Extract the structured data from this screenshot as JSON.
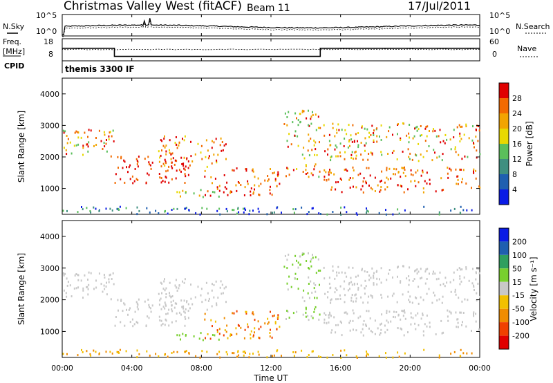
{
  "header": {
    "title": "Christmas Valley West (fitACF)",
    "beam": "Beam 11",
    "date": "17/Jul/2011"
  },
  "left_labels": {
    "nsky": "N.Sky",
    "freq_line1": "Freq.",
    "freq_line2": "[MHz]",
    "cpid": "CPID"
  },
  "right_labels": {
    "nsearch": "N.Search",
    "nave": "Nave"
  },
  "cpid_text": "themis 3300 IF",
  "colors": {
    "power": [
      "#0a1be6",
      "#1f5fb0",
      "#3f8f80",
      "#5bbf5b",
      "#e8d800",
      "#f2a400",
      "#f26a00",
      "#e00000"
    ],
    "velocity": [
      "#e00000",
      "#f04000",
      "#f08c00",
      "#f2c000",
      "#c8c8c8",
      "#78cf2e",
      "#2f9f5f",
      "#1f5fb0",
      "#0a1be6"
    ]
  },
  "chart_data": [
    {
      "type": "line",
      "name": "noise-panel",
      "ylabel_left": "N.Sky",
      "ylabel_right": "N.Search",
      "left_ticks": [
        "10^5",
        "10^0"
      ],
      "right_ticks": [
        "10^5",
        "10^0"
      ]
    },
    {
      "type": "line",
      "name": "freq-nave-panel",
      "ylabel_left": "Freq. [MHz]",
      "ylabel_right": "Nave",
      "left_ticks": [
        "18",
        "8"
      ],
      "right_ticks": [
        "60",
        "0"
      ],
      "freq_steps": [
        {
          "from": "00:00",
          "to": "03:00",
          "mhz": 14.5
        },
        {
          "from": "03:00",
          "to": "14:50",
          "mhz": 10.3
        },
        {
          "from": "14:50",
          "to": "24:00",
          "mhz": 14.5
        }
      ]
    },
    {
      "type": "heatmap",
      "name": "power",
      "ylabel": "Slant Range [km]",
      "yticks": [
        "4000",
        "3000",
        "2000",
        "1000"
      ],
      "ylim": [
        180,
        4500
      ],
      "colorbar_label": "Power [dB]",
      "colorbar_ticks": [
        "28",
        "24",
        "20",
        "16",
        "12",
        "8",
        "4"
      ]
    },
    {
      "type": "heatmap",
      "name": "velocity",
      "ylabel": "Slant Range [km]",
      "yticks": [
        "4000",
        "3000",
        "2000",
        "1000"
      ],
      "ylim": [
        180,
        4500
      ],
      "colorbar_label": "Velocity [m s⁻¹]",
      "colorbar_ticks": [
        "200",
        "100",
        "50",
        "15",
        "-15",
        "-50",
        "-100",
        "-200"
      ]
    }
  ],
  "xaxis": {
    "ticks": [
      "00:00",
      "04:00",
      "08:00",
      "12:00",
      "16:00",
      "20:00",
      "00:00"
    ],
    "label": "Time UT"
  }
}
